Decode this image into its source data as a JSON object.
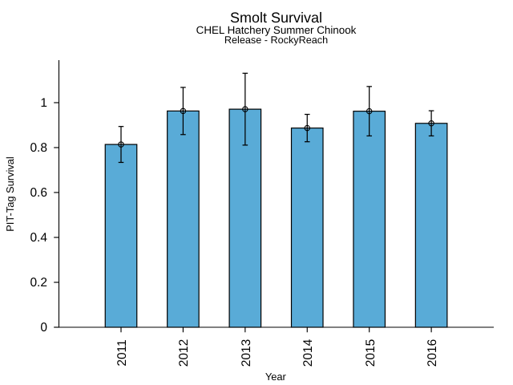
{
  "chart_data": {
    "type": "bar",
    "title": "Smolt Survival",
    "subtitle": [
      "CHEL Hatchery Summer Chinook",
      "Release - RockyReach"
    ],
    "xlabel": "Year",
    "ylabel": "PIT-Tag Survival",
    "categories": [
      "2011",
      "2012",
      "2013",
      "2014",
      "2015",
      "2016"
    ],
    "series": [
      {
        "name": "PIT-Tag Survival",
        "values": [
          0.814,
          0.963,
          0.971,
          0.887,
          0.962,
          0.908
        ],
        "errors": [
          0.08,
          0.105,
          0.16,
          0.061,
          0.11,
          0.056
        ]
      }
    ],
    "ytick_values": [
      0,
      0.2,
      0.4,
      0.6,
      0.8,
      1
    ],
    "ytick_labels": [
      "0",
      "0.2",
      "0.4",
      "0.6",
      "0.8",
      "1"
    ],
    "ylim": [
      0,
      1.19
    ],
    "grid": false,
    "legend": "none",
    "bar_color": "#59ABD7",
    "bar_edge_color": "#000000",
    "errorbar_color": "#000000",
    "marker": "open-circle",
    "background_color": "#ffffff"
  }
}
